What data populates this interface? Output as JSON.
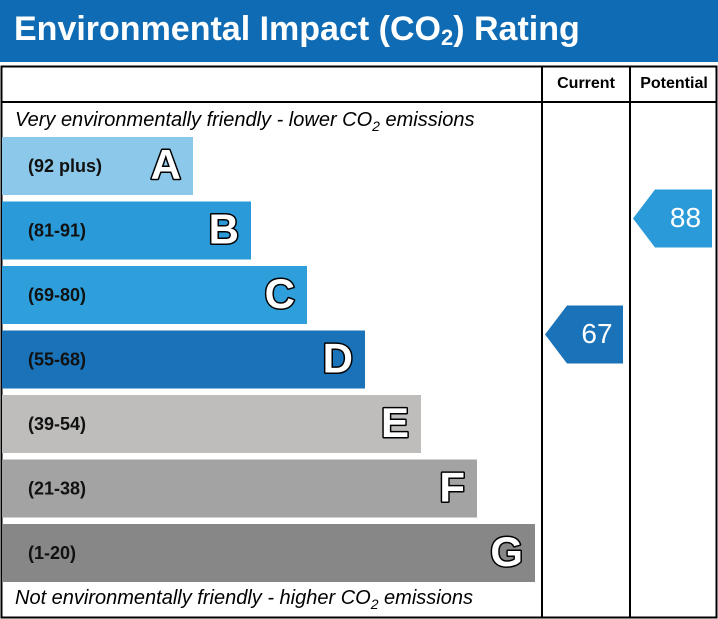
{
  "header": {
    "title": [
      "Environmental Impact (CO",
      "2",
      ") Rating"
    ]
  },
  "columns": [
    "Current",
    "Potential"
  ],
  "top_note": [
    "Very environmentally friendly - lower CO",
    "2",
    " emissions"
  ],
  "bottom_note": [
    "Not environmentally friendly - higher CO",
    "2",
    " emissions"
  ],
  "bands": [
    {
      "range": "(92 plus)",
      "letter": "A",
      "color": "#8cc8ea"
    },
    {
      "range": "(81-91)",
      "letter": "B",
      "color": "#2a9ad8"
    },
    {
      "range": "(69-80)",
      "letter": "C",
      "color": "#2e9fdb"
    },
    {
      "range": "(55-68)",
      "letter": "D",
      "color": "#1a72b8"
    },
    {
      "range": "(39-54)",
      "letter": "E",
      "color": "#bebdbc"
    },
    {
      "range": "(21-38)",
      "letter": "F",
      "color": "#a3a3a3"
    },
    {
      "range": "(1-20)",
      "letter": "G",
      "color": "#878787"
    }
  ],
  "ratings": [
    {
      "value": 67,
      "color": "#1a72b8"
    },
    {
      "value": 88,
      "color": "#2a9ad8"
    }
  ]
}
